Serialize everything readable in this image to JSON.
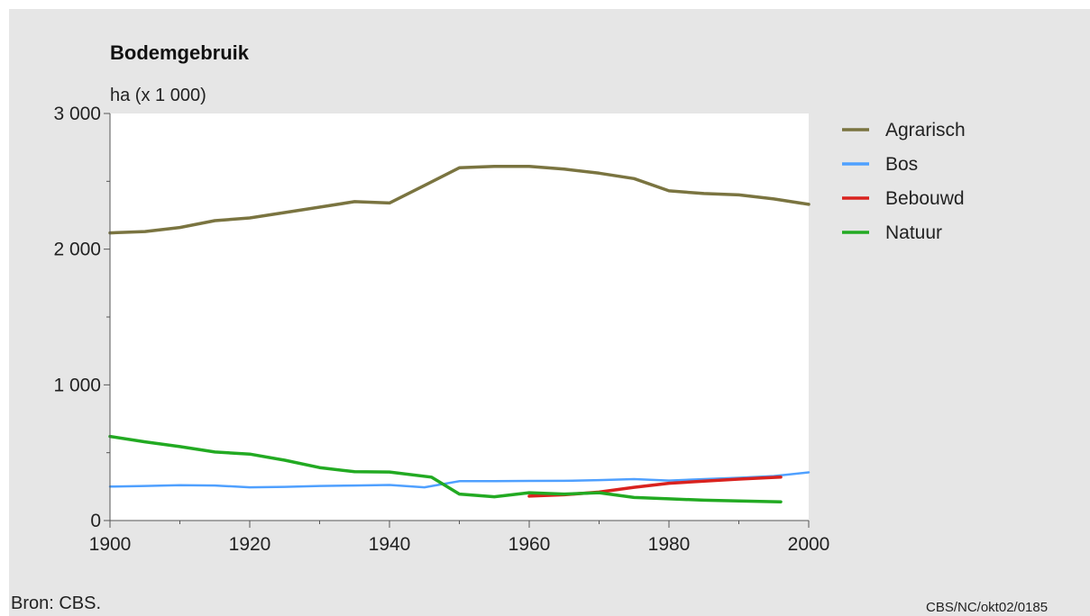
{
  "chart_data": {
    "type": "line",
    "title": "Bodemgebruik",
    "ylabel": "ha (x 1 000)",
    "xlabel": "",
    "xlim": [
      1900,
      2000
    ],
    "ylim": [
      0,
      3000
    ],
    "xticks": [
      {
        "value": 1900,
        "label": "1900"
      },
      {
        "value": 1920,
        "label": "1920"
      },
      {
        "value": 1940,
        "label": "1940"
      },
      {
        "value": 1960,
        "label": "1960"
      },
      {
        "value": 1980,
        "label": "1980"
      },
      {
        "value": 2000,
        "label": "2000"
      }
    ],
    "yticks": [
      {
        "value": 0,
        "label": "0"
      },
      {
        "value": 1000,
        "label": "1 000"
      },
      {
        "value": 2000,
        "label": "2 000"
      },
      {
        "value": 3000,
        "label": "3 000"
      }
    ],
    "legend_position": "right",
    "grid": false,
    "series": [
      {
        "name": "Agrarisch",
        "color": "#7a7440",
        "x": [
          1900,
          1905,
          1910,
          1915,
          1920,
          1925,
          1930,
          1935,
          1940,
          1945,
          1950,
          1955,
          1960,
          1965,
          1970,
          1975,
          1980,
          1985,
          1990,
          1995,
          2000
        ],
        "y": [
          2120,
          2130,
          2160,
          2210,
          2230,
          2270,
          2310,
          2350,
          2340,
          2470,
          2600,
          2610,
          2610,
          2590,
          2560,
          2520,
          2430,
          2410,
          2400,
          2370,
          2330
        ]
      },
      {
        "name": "Bos",
        "color": "#4fa0ff",
        "x": [
          1900,
          1905,
          1910,
          1915,
          1920,
          1925,
          1930,
          1935,
          1940,
          1945,
          1950,
          1955,
          1960,
          1965,
          1970,
          1975,
          1980,
          1985,
          1990,
          1995,
          2000
        ],
        "y": [
          250,
          255,
          260,
          258,
          245,
          248,
          255,
          258,
          262,
          245,
          290,
          290,
          292,
          293,
          298,
          305,
          295,
          305,
          315,
          328,
          355
        ]
      },
      {
        "name": "Bebouwd",
        "color": "#d9221e",
        "x": [
          1960,
          1965,
          1970,
          1975,
          1980,
          1985,
          1990,
          1996
        ],
        "y": [
          180,
          190,
          210,
          245,
          275,
          290,
          305,
          320
        ]
      },
      {
        "name": "Natuur",
        "color": "#22aa22",
        "x": [
          1900,
          1905,
          1910,
          1915,
          1920,
          1925,
          1930,
          1935,
          1940,
          1946,
          1950,
          1955,
          1960,
          1965,
          1970,
          1975,
          1980,
          1985,
          1990,
          1996
        ],
        "y": [
          620,
          580,
          545,
          505,
          490,
          445,
          390,
          360,
          358,
          320,
          195,
          175,
          205,
          195,
          205,
          170,
          160,
          150,
          145,
          138
        ]
      }
    ],
    "source": "Bron: CBS.",
    "code": "CBS/NC/okt02/0185"
  }
}
